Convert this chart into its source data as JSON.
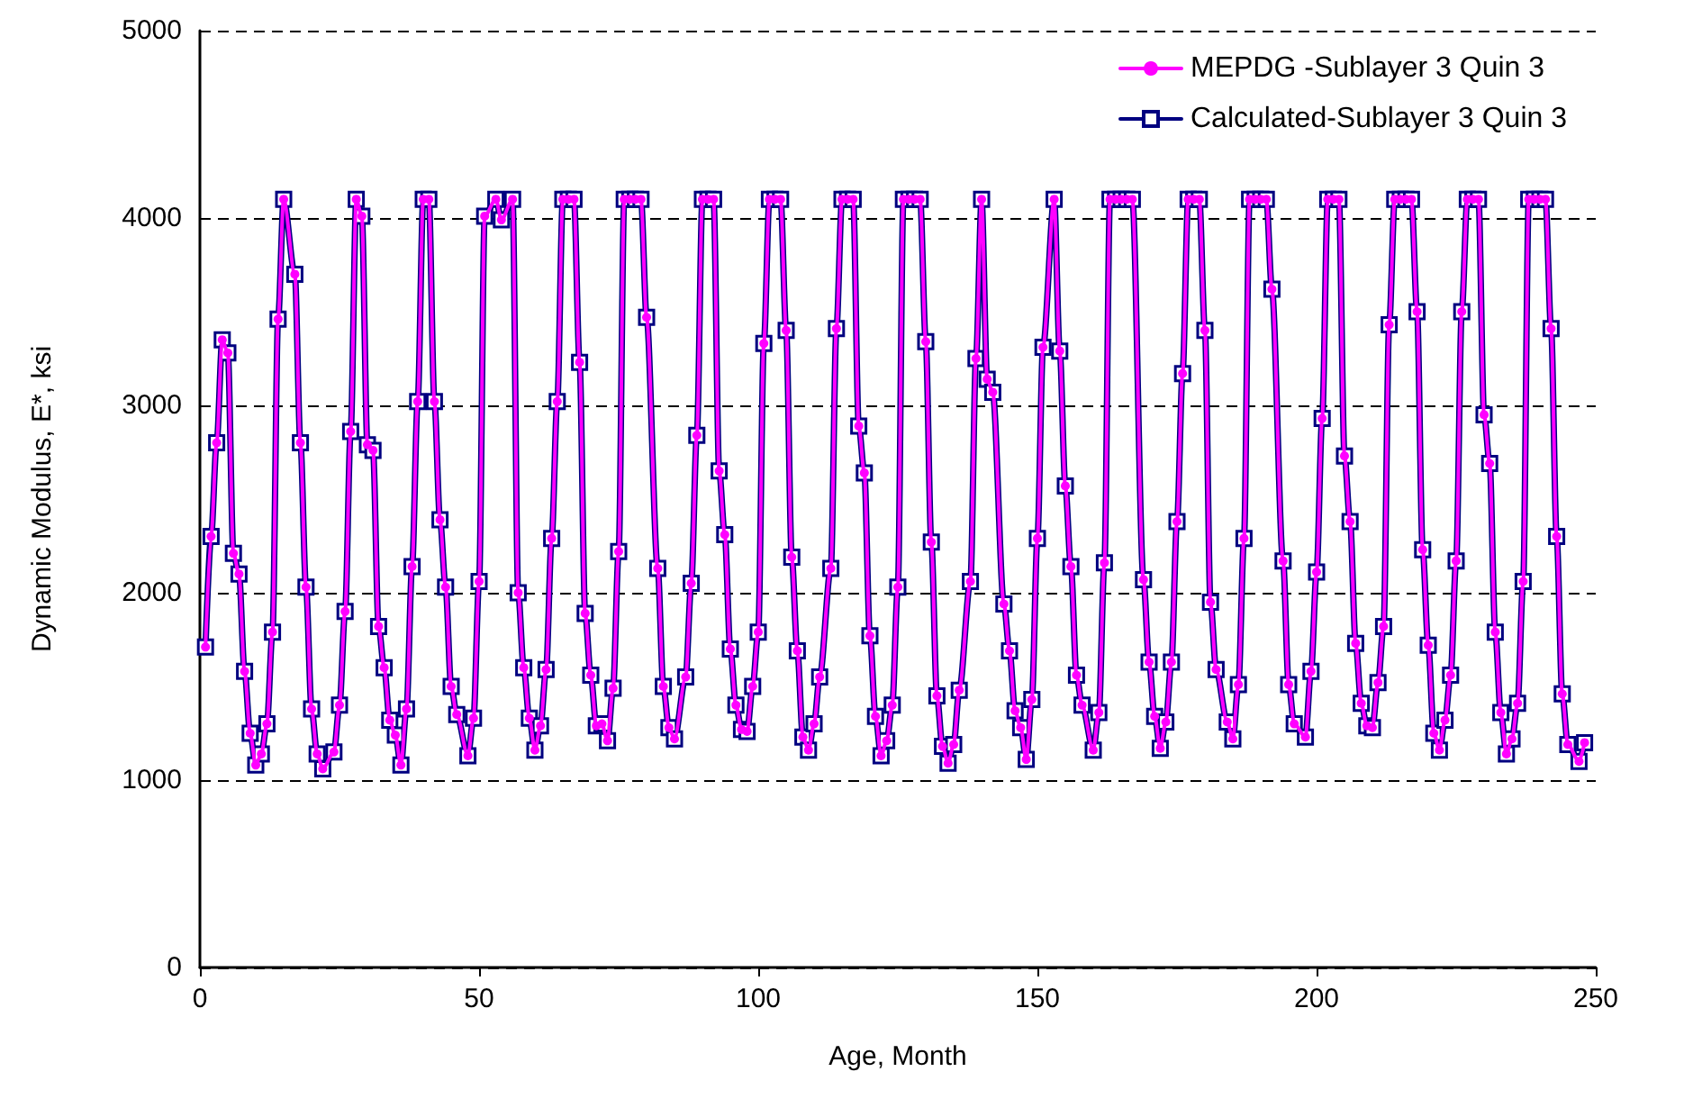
{
  "chart_data": {
    "type": "line",
    "xlabel": "Age, Month",
    "ylabel": "Dynamic Modulus, E*, ksi",
    "xlim": [
      0,
      250
    ],
    "xticks": [
      0,
      50,
      100,
      150,
      200,
      250
    ],
    "ylim": [
      0,
      5000
    ],
    "yticks": [
      0,
      1000,
      2000,
      3000,
      4000,
      5000
    ],
    "grid": "y",
    "legend": "top right",
    "x": [
      1,
      2,
      3,
      4,
      5,
      6,
      7,
      8,
      9,
      10,
      11,
      12,
      13,
      14,
      15,
      17,
      18,
      19,
      20,
      21,
      22,
      24,
      25,
      26,
      27,
      28,
      29,
      30,
      31,
      32,
      33,
      34,
      35,
      36,
      37,
      38,
      39,
      40,
      41,
      42,
      43,
      44,
      45,
      46,
      48,
      49,
      50,
      51,
      53,
      54,
      56,
      57,
      58,
      59,
      60,
      61,
      62,
      63,
      64,
      65,
      66,
      67,
      68,
      69,
      70,
      71,
      72,
      73,
      74,
      75,
      76,
      77,
      78,
      79,
      80,
      82,
      83,
      84,
      85,
      87,
      88,
      89,
      90,
      91,
      92,
      93,
      94,
      95,
      96,
      97,
      98,
      99,
      100,
      101,
      102,
      103,
      104,
      105,
      106,
      107,
      108,
      109,
      110,
      111,
      113,
      114,
      115,
      116,
      117,
      118,
      119,
      120,
      121,
      122,
      123,
      124,
      125,
      126,
      127,
      128,
      129,
      130,
      131,
      132,
      133,
      134,
      135,
      136,
      138,
      139,
      140,
      141,
      142,
      144,
      145,
      146,
      147,
      148,
      149,
      150,
      151,
      153,
      154,
      155,
      156,
      157,
      158,
      160,
      161,
      162,
      163,
      164,
      165,
      166,
      167,
      169,
      170,
      171,
      172,
      173,
      174,
      175,
      176,
      177,
      178,
      179,
      180,
      181,
      182,
      184,
      185,
      186,
      187,
      188,
      189,
      190,
      191,
      192,
      194,
      195,
      196,
      198,
      199,
      200,
      201,
      202,
      203,
      204,
      205,
      206,
      207,
      208,
      209,
      210,
      211,
      212,
      213,
      214,
      215,
      216,
      217,
      218,
      219,
      220,
      221,
      222,
      223,
      224,
      225,
      226,
      227,
      228,
      229,
      230,
      231,
      232,
      233,
      234,
      235,
      236,
      237,
      238,
      239,
      240,
      241,
      242,
      243,
      244,
      245,
      247,
      248
    ],
    "series": [
      {
        "name": "MEPDG -Sublayer 3 Quin 3",
        "color": "#ff00ff",
        "marker": "circle",
        "values": [
          1710,
          2300,
          2800,
          3350,
          3280,
          2210,
          2100,
          1580,
          1250,
          1080,
          1140,
          1300,
          1790,
          3460,
          4100,
          3700,
          2800,
          2030,
          1380,
          1140,
          1060,
          1150,
          1400,
          1900,
          2860,
          4100,
          4010,
          2790,
          2760,
          1820,
          1600,
          1320,
          1240,
          1080,
          1380,
          2140,
          3020,
          4100,
          4100,
          3020,
          2390,
          2030,
          1500,
          1350,
          1130,
          1330,
          2060,
          4010,
          4100,
          3990,
          4100,
          2000,
          1600,
          1330,
          1160,
          1290,
          1590,
          2290,
          3020,
          4100,
          4100,
          4100,
          3230,
          1890,
          1560,
          1290,
          1300,
          1210,
          1490,
          2220,
          4100,
          4100,
          4100,
          4100,
          3470,
          2130,
          1500,
          1280,
          1220,
          1550,
          2050,
          2840,
          4100,
          4100,
          4100,
          2650,
          2310,
          1700,
          1400,
          1270,
          1260,
          1500,
          1790,
          3330,
          4100,
          4100,
          4100,
          3400,
          2190,
          1690,
          1230,
          1160,
          1300,
          1550,
          2130,
          3410,
          4100,
          4100,
          4100,
          2890,
          2640,
          1770,
          1340,
          1130,
          1210,
          1400,
          2030,
          4100,
          4100,
          4100,
          4100,
          3340,
          2270,
          1450,
          1180,
          1090,
          1190,
          1480,
          2060,
          3250,
          4100,
          3140,
          3070,
          1940,
          1690,
          1370,
          1280,
          1110,
          1430,
          2290,
          3310,
          4100,
          3290,
          2570,
          2140,
          1560,
          1400,
          1160,
          1360,
          2160,
          4100,
          4100,
          4100,
          4100,
          4100,
          2070,
          1630,
          1340,
          1170,
          1310,
          1630,
          2380,
          3170,
          4100,
          4100,
          4100,
          3400,
          1950,
          1590,
          1310,
          1220,
          1510,
          2290,
          4100,
          4100,
          4100,
          4100,
          3620,
          2170,
          1510,
          1300,
          1230,
          1580,
          2110,
          2930,
          4100,
          4100,
          4100,
          2730,
          2380,
          1730,
          1410,
          1290,
          1280,
          1520,
          1820,
          3430,
          4100,
          4100,
          4100,
          4100,
          3500,
          2230,
          1720,
          1250,
          1160,
          1320,
          1560,
          2170,
          3500,
          4100,
          4100,
          4100,
          2950,
          2690,
          1790,
          1360,
          1140,
          1220,
          1410,
          2060,
          4100,
          4100,
          4100,
          4100,
          3410,
          2300,
          1460,
          1190,
          1100,
          1200
        ]
      },
      {
        "name": "Calculated-Sublayer 3 Quin 3",
        "color": "#000080",
        "marker": "square",
        "values": [
          1710,
          2300,
          2800,
          3350,
          3280,
          2210,
          2100,
          1580,
          1250,
          1080,
          1140,
          1300,
          1790,
          3460,
          4100,
          3700,
          2800,
          2030,
          1380,
          1140,
          1060,
          1150,
          1400,
          1900,
          2860,
          4100,
          4010,
          2790,
          2760,
          1820,
          1600,
          1320,
          1240,
          1080,
          1380,
          2140,
          3020,
          4100,
          4100,
          3020,
          2390,
          2030,
          1500,
          1350,
          1130,
          1330,
          2060,
          4010,
          4100,
          3990,
          4100,
          2000,
          1600,
          1330,
          1160,
          1290,
          1590,
          2290,
          3020,
          4100,
          4100,
          4100,
          3230,
          1890,
          1560,
          1290,
          1300,
          1210,
          1490,
          2220,
          4100,
          4100,
          4100,
          4100,
          3470,
          2130,
          1500,
          1280,
          1220,
          1550,
          2050,
          2840,
          4100,
          4100,
          4100,
          2650,
          2310,
          1700,
          1400,
          1270,
          1260,
          1500,
          1790,
          3330,
          4100,
          4100,
          4100,
          3400,
          2190,
          1690,
          1230,
          1160,
          1300,
          1550,
          2130,
          3410,
          4100,
          4100,
          4100,
          2890,
          2640,
          1770,
          1340,
          1130,
          1210,
          1400,
          2030,
          4100,
          4100,
          4100,
          4100,
          3340,
          2270,
          1450,
          1180,
          1090,
          1190,
          1480,
          2060,
          3250,
          4100,
          3140,
          3070,
          1940,
          1690,
          1370,
          1280,
          1110,
          1430,
          2290,
          3310,
          4100,
          3290,
          2570,
          2140,
          1560,
          1400,
          1160,
          1360,
          2160,
          4100,
          4100,
          4100,
          4100,
          4100,
          2070,
          1630,
          1340,
          1170,
          1310,
          1630,
          2380,
          3170,
          4100,
          4100,
          4100,
          3400,
          1950,
          1590,
          1310,
          1220,
          1510,
          2290,
          4100,
          4100,
          4100,
          4100,
          3620,
          2170,
          1510,
          1300,
          1230,
          1580,
          2110,
          2930,
          4100,
          4100,
          4100,
          2730,
          2380,
          1730,
          1410,
          1290,
          1280,
          1520,
          1820,
          3430,
          4100,
          4100,
          4100,
          4100,
          3500,
          2230,
          1720,
          1250,
          1160,
          1320,
          1560,
          2170,
          3500,
          4100,
          4100,
          4100,
          2950,
          2690,
          1790,
          1360,
          1140,
          1220,
          1410,
          2060,
          4100,
          4100,
          4100,
          4100,
          3410,
          2300,
          1460,
          1190,
          1100,
          1200
        ]
      }
    ]
  }
}
